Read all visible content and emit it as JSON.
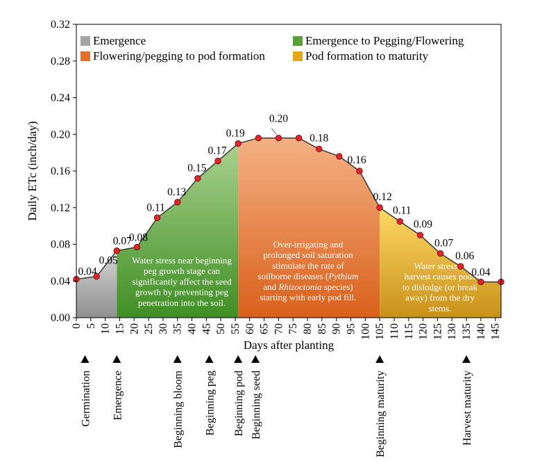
{
  "chart_data": {
    "type": "line",
    "title": "",
    "xlabel": "Days after planting",
    "ylabel": "Daily ETc (inch/day)",
    "xlim": [
      0,
      147
    ],
    "ylim": [
      0,
      0.32
    ],
    "x_ticks": [
      0,
      5,
      10,
      15,
      20,
      25,
      30,
      35,
      40,
      45,
      50,
      55,
      60,
      65,
      70,
      75,
      80,
      85,
      90,
      95,
      100,
      105,
      110,
      115,
      120,
      125,
      130,
      135,
      140,
      145
    ],
    "y_ticks": [
      {
        "value": 0.0,
        "label": "0.00"
      },
      {
        "value": 0.04,
        "label": "0.04"
      },
      {
        "value": 0.08,
        "label": "0.08"
      },
      {
        "value": 0.12,
        "label": "0.12"
      },
      {
        "value": 0.16,
        "label": "0.16"
      },
      {
        "value": 0.2,
        "label": "0.20"
      },
      {
        "value": 0.24,
        "label": "0.24"
      },
      {
        "value": 0.28,
        "label": "0.28"
      },
      {
        "value": 0.32,
        "label": "0.32"
      }
    ],
    "series": [
      {
        "name": "Daily ETc",
        "points": [
          {
            "x": 0,
            "y": 0.042,
            "label": "0.04"
          },
          {
            "x": 7,
            "y": 0.045,
            "label": "0.05"
          },
          {
            "x": 14,
            "y": 0.073,
            "label": "0.07"
          },
          {
            "x": 21,
            "y": 0.077,
            "label": "0.08"
          },
          {
            "x": 28,
            "y": 0.109,
            "label": "0.11"
          },
          {
            "x": 35,
            "y": 0.126,
            "label": "0.13"
          },
          {
            "x": 42,
            "y": 0.152,
            "label": "0.15"
          },
          {
            "x": 49,
            "y": 0.171,
            "label": "0.17"
          },
          {
            "x": 56,
            "y": 0.19,
            "label": "0.19"
          },
          {
            "x": 63,
            "y": 0.196,
            "label": ""
          },
          {
            "x": 70,
            "y": 0.196,
            "label": "0.20"
          },
          {
            "x": 77,
            "y": 0.196,
            "label": ""
          },
          {
            "x": 84,
            "y": 0.184,
            "label": "0.18"
          },
          {
            "x": 91,
            "y": 0.176,
            "label": ""
          },
          {
            "x": 98,
            "y": 0.16,
            "label": "0.16"
          },
          {
            "x": 105,
            "y": 0.12,
            "label": "0.12"
          },
          {
            "x": 112,
            "y": 0.105,
            "label": "0.11"
          },
          {
            "x": 119,
            "y": 0.09,
            "label": "0.09"
          },
          {
            "x": 126,
            "y": 0.07,
            "label": "0.07"
          },
          {
            "x": 133,
            "y": 0.056,
            "label": "0.06"
          },
          {
            "x": 140,
            "y": 0.039,
            "label": "0.04"
          },
          {
            "x": 147,
            "y": 0.039,
            "label": ""
          }
        ]
      }
    ],
    "stages": [
      {
        "name": "Emergence",
        "x_start": 0,
        "x_end": 14,
        "color_top": "#d6d6d6",
        "color_bottom": "#8f8f8f"
      },
      {
        "name": "Emergence to Pegging/Flowering",
        "x_start": 14,
        "x_end": 56,
        "color_top": "#a9d18e",
        "color_bottom": "#3f8f24"
      },
      {
        "name": "Flowering/pegging to pod formation",
        "x_start": 56,
        "x_end": 105,
        "color_top": "#f4b183",
        "color_bottom": "#d9601b"
      },
      {
        "name": "Pod formation to maturity",
        "x_start": 105,
        "x_end": 147,
        "color_top": "#ffd966",
        "color_bottom": "#c89118"
      }
    ],
    "legend": {
      "position": "top",
      "items": [
        {
          "label": "Emergence",
          "color": "#a5a5a5"
        },
        {
          "label": "Emergence to Pegging/Flowering",
          "color": "#5b9f3a"
        },
        {
          "label": "Flowering/pegging to pod formation",
          "color": "#e3702a"
        },
        {
          "label": "Pod formation to maturity",
          "color": "#e5a718"
        }
      ]
    },
    "annotations": [
      {
        "x_start": 14,
        "x_end": 56,
        "color": "#ffffff",
        "lines": [
          "Water stress near beginning",
          "peg growth stage can",
          "significantly affect the seed",
          "growth by preventing peg",
          "penetration into the soil."
        ]
      },
      {
        "x_start": 56,
        "x_end": 105,
        "color": "#ffffff",
        "lines": [
          "Over-irrigating and",
          "prolonged soil saturation",
          "stimulate the rate of",
          "soilborne diseases (Pythium",
          "and Rhizoctonia species)",
          "starting with early pod fill."
        ]
      },
      {
        "x_start": 105,
        "x_end": 147,
        "color": "#ffffff",
        "lines": [
          "Water stress at",
          "harvest causes pods",
          "to dislodge (or break",
          "away) from the dry",
          "stems."
        ]
      }
    ],
    "growth_stages": [
      {
        "x": 3,
        "label": "Germination"
      },
      {
        "x": 14,
        "label": "Emergence"
      },
      {
        "x": 35,
        "label": "Beginning bloom"
      },
      {
        "x": 46,
        "label": "Beginning peg"
      },
      {
        "x": 56,
        "label": "Beginning pod"
      },
      {
        "x": 62,
        "label": "Beginning seed"
      },
      {
        "x": 105,
        "label": "Beginning maturity"
      },
      {
        "x": 135,
        "label": "Harvest maturity"
      }
    ],
    "colors": {
      "line": "#404040",
      "marker_fill": "#e8242b",
      "marker_edge": "#7a1010",
      "axis": "#000000"
    }
  }
}
